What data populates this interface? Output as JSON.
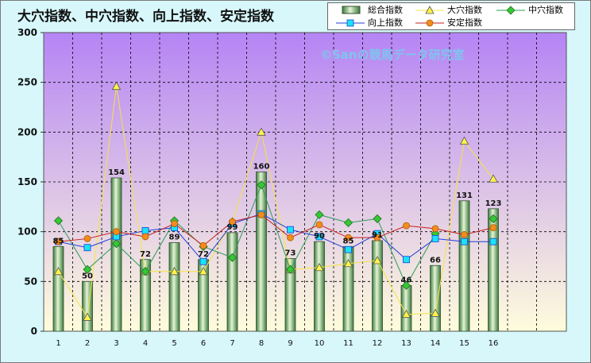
{
  "title": "大穴指数、中穴指数、向上指数、安定指数",
  "watermark": "©Sanの競馬データ研究室",
  "legend": [
    {
      "label": "総合指数"
    },
    {
      "label": "大穴指数"
    },
    {
      "label": "中穴指数"
    },
    {
      "label": "向上指数"
    },
    {
      "label": "安定指数"
    }
  ],
  "colors": {
    "background": "#d7f7fb",
    "plot_top": "#b584f4",
    "plot_bottom": "#fffcdc",
    "bar_light": "#e4f5d6",
    "bar_dark": "#3c7a3c",
    "bar_edge": "#2f4f2f",
    "taiketsu": "#f5e442",
    "chuuketsu": "#2a9d55",
    "chuuketsu_marker": "#35c835",
    "koujou": "#1f3fd8",
    "koujou_marker": "#19e3f5",
    "antei": "#c81e1e",
    "antei_marker": "#f28c1e"
  },
  "chart_data": {
    "type": "bar",
    "categories": [
      "1",
      "2",
      "3",
      "4",
      "5",
      "6",
      "7",
      "8",
      "9",
      "10",
      "11",
      "12",
      "13",
      "14",
      "15",
      "16"
    ],
    "ylim": [
      0,
      300
    ],
    "yticks": [
      0,
      50,
      100,
      150,
      200,
      250,
      300
    ],
    "series": [
      {
        "name": "総合指数",
        "kind": "bar",
        "values": [
          85,
          50,
          154,
          72,
          89,
          72,
          99,
          160,
          73,
          90,
          85,
          91,
          46,
          66,
          131,
          123
        ]
      },
      {
        "name": "大穴指数",
        "kind": "line",
        "marker": "triangle",
        "values": [
          60,
          14,
          246,
          60,
          60,
          60,
          110,
          200,
          62,
          64,
          68,
          71,
          17,
          18,
          191,
          153
        ]
      },
      {
        "name": "中穴指数",
        "kind": "line",
        "marker": "diamond",
        "values": [
          111,
          62,
          88,
          60,
          111,
          85,
          74,
          147,
          62,
          117,
          109,
          113,
          46,
          98,
          null,
          113
        ]
      },
      {
        "name": "向上指数",
        "kind": "line",
        "marker": "square",
        "values": [
          90,
          84,
          95,
          101,
          104,
          70,
          108,
          118,
          102,
          95,
          82,
          98,
          72,
          93,
          90,
          90
        ]
      },
      {
        "name": "安定指数",
        "kind": "line",
        "marker": "circle",
        "values": [
          90,
          93,
          100,
          95,
          108,
          86,
          110,
          117,
          94,
          107,
          94,
          94,
          106,
          103,
          97,
          104
        ]
      }
    ],
    "bar_labels": [
      "85",
      "50",
      "154",
      "72",
      "89",
      "72",
      "99",
      "160",
      "73",
      "90",
      "85",
      "91",
      "46",
      "66",
      "131",
      "123"
    ]
  }
}
